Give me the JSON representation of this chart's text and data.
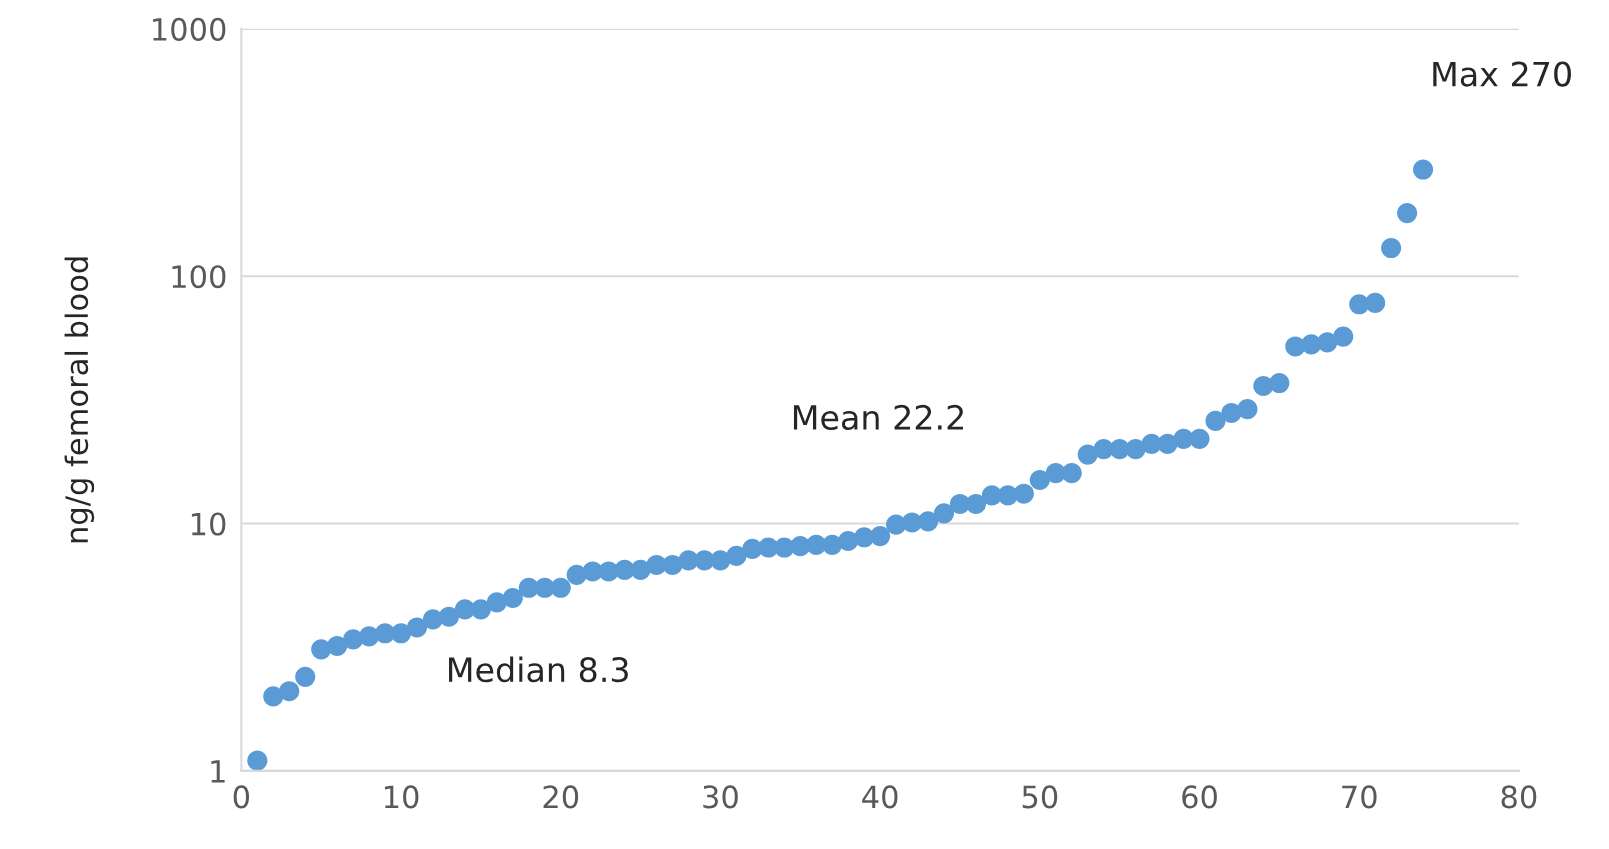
{
  "chart_data": {
    "type": "scatter",
    "ylabel": "ng/g femoral blood",
    "x": [
      1,
      2,
      3,
      4,
      5,
      6,
      7,
      8,
      9,
      10,
      11,
      12,
      13,
      14,
      15,
      16,
      17,
      18,
      19,
      20,
      21,
      22,
      23,
      24,
      25,
      26,
      27,
      28,
      29,
      30,
      31,
      32,
      33,
      34,
      35,
      36,
      37,
      38,
      39,
      40,
      41,
      42,
      43,
      44,
      45,
      46,
      47,
      48,
      49,
      50,
      51,
      52,
      53,
      54,
      55,
      56,
      57,
      58,
      59,
      60,
      61,
      62,
      63,
      64,
      65,
      66,
      67,
      68,
      69,
      70,
      71,
      72,
      73,
      74
    ],
    "series": [
      {
        "color": "#5b9bd5",
        "values": [
          1.1,
          2.0,
          2.1,
          2.4,
          3.1,
          3.2,
          3.4,
          3.5,
          3.6,
          3.6,
          3.8,
          4.1,
          4.2,
          4.5,
          4.5,
          4.8,
          5.0,
          5.5,
          5.5,
          5.5,
          6.2,
          6.4,
          6.4,
          6.5,
          6.5,
          6.8,
          6.8,
          7.1,
          7.1,
          7.1,
          7.4,
          7.9,
          8.0,
          8.0,
          8.1,
          8.2,
          8.2,
          8.5,
          8.8,
          8.9,
          9.9,
          10.1,
          10.2,
          11,
          12,
          12,
          13,
          13,
          13.2,
          15,
          16,
          16,
          19,
          20,
          20,
          20,
          21,
          21,
          22,
          22,
          26,
          28,
          29,
          36,
          37,
          52,
          53,
          54,
          57,
          77,
          78,
          130,
          180,
          270
        ]
      }
    ],
    "marker": "circle",
    "log": "y",
    "grid": "y",
    "xlim": [
      0,
      80
    ],
    "xticks": [
      0,
      10,
      20,
      30,
      40,
      50,
      60,
      70,
      80
    ],
    "ylim": [
      1,
      1000
    ],
    "yticks": [
      1,
      10,
      100,
      1000
    ],
    "annotations": [
      "Median 8.3",
      "Mean 22.2",
      {
        "text": "Max 270",
        "x": 74,
        "y": 270
      }
    ]
  }
}
